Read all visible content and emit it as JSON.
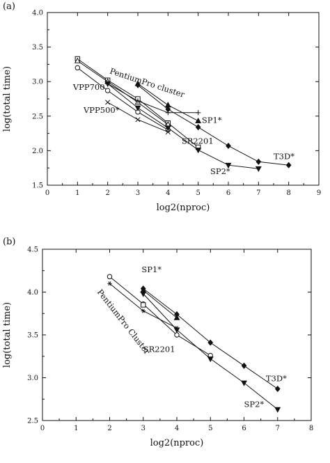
{
  "chart_data": [
    {
      "type": "line",
      "panel_label": "(a)",
      "xlabel": "log2(nproc)",
      "ylabel": "log(total time)",
      "xlim": [
        0,
        9
      ],
      "ylim": [
        1.5,
        4.0
      ],
      "xticks": [
        0,
        1,
        2,
        3,
        4,
        5,
        6,
        7,
        8,
        9
      ],
      "yticks": [
        1.5,
        2.0,
        2.5,
        3.0,
        3.5,
        4.0
      ],
      "ytick_decimals": 1,
      "grid": false,
      "legend": "none",
      "series": [
        {
          "marker": "circle-open",
          "x": [
            1,
            2,
            3,
            4
          ],
          "y": [
            3.2,
            2.87,
            2.56,
            2.3
          ]
        },
        {
          "marker": "square-open",
          "x": [
            1,
            2,
            3,
            4,
            5
          ],
          "y": [
            3.33,
            3.02,
            2.75,
            2.4,
            2.05
          ]
        },
        {
          "marker": "triangle-up-open",
          "x": [
            1,
            2,
            3,
            4
          ],
          "y": [
            3.3,
            3.0,
            2.7,
            2.38
          ]
        },
        {
          "marker": "triangle-down-filled",
          "x": [
            2,
            3,
            4,
            5,
            6,
            7
          ],
          "y": [
            2.97,
            2.62,
            2.33,
            2.01,
            1.79,
            1.74
          ]
        },
        {
          "marker": "cross",
          "x": [
            2,
            3,
            4
          ],
          "y": [
            2.7,
            2.45,
            2.27
          ]
        },
        {
          "marker": "plus",
          "x": [
            2,
            3,
            4,
            5
          ],
          "y": [
            2.97,
            2.72,
            2.55,
            2.55
          ]
        },
        {
          "marker": "triangle-up-filled",
          "x": [
            3,
            4,
            5
          ],
          "y": [
            2.97,
            2.66,
            2.43
          ]
        },
        {
          "marker": "diamond-filled",
          "x": [
            3,
            4,
            5,
            6,
            7,
            8
          ],
          "y": [
            2.95,
            2.6,
            2.34,
            2.07,
            1.84,
            1.79
          ]
        }
      ],
      "annotations": [
        {
          "text": "VPP700",
          "x": 0.85,
          "y": 2.88,
          "rotate": 0
        },
        {
          "text": "VPP500*",
          "x": 1.2,
          "y": 2.55,
          "rotate": 0
        },
        {
          "text": "PentiumPro cluster",
          "x": 2.05,
          "y": 3.12,
          "rotate": 18
        },
        {
          "text": "SP1*",
          "x": 5.12,
          "y": 2.4,
          "rotate": 0
        },
        {
          "text": "SR2201",
          "x": 4.45,
          "y": 2.1,
          "rotate": 0
        },
        {
          "text": "SP2*",
          "x": 5.4,
          "y": 1.66,
          "rotate": 0
        },
        {
          "text": "T3D*",
          "x": 7.5,
          "y": 1.88,
          "rotate": 0
        }
      ]
    },
    {
      "type": "line",
      "panel_label": "(b)",
      "xlabel": "log2(nproc)",
      "ylabel": "log(total time)",
      "xlim": [
        0,
        8
      ],
      "ylim": [
        2.5,
        4.5
      ],
      "xticks": [
        0,
        1,
        2,
        3,
        4,
        5,
        6,
        7,
        8
      ],
      "yticks": [
        2.5,
        3.0,
        3.5,
        4.0,
        4.5
      ],
      "ytick_decimals": 1,
      "grid": false,
      "legend": "none",
      "series": [
        {
          "marker": "circle-open",
          "x": [
            2,
            3,
            4,
            5
          ],
          "y": [
            4.18,
            3.86,
            3.5,
            3.26
          ]
        },
        {
          "marker": "square-open",
          "x": [
            3
          ],
          "y": [
            3.85
          ]
        },
        {
          "marker": "asterisk",
          "x": [
            2,
            3,
            4
          ],
          "y": [
            4.1,
            3.78,
            3.58
          ]
        },
        {
          "marker": "triangle-down-filled",
          "x": [
            3,
            4,
            5,
            6,
            7
          ],
          "y": [
            3.98,
            3.56,
            3.22,
            2.94,
            2.63
          ]
        },
        {
          "marker": "triangle-up-filled",
          "x": [
            3,
            4
          ],
          "y": [
            4.02,
            3.7
          ]
        },
        {
          "marker": "diamond-filled",
          "x": [
            3,
            4,
            5,
            6,
            7
          ],
          "y": [
            4.04,
            3.74,
            3.41,
            3.14,
            2.87
          ]
        }
      ],
      "annotations": [
        {
          "text": "SP1*",
          "x": 2.95,
          "y": 4.23,
          "rotate": 0
        },
        {
          "text": "PentiumPro Cluster",
          "x": 1.62,
          "y": 4.0,
          "rotate": 52
        },
        {
          "text": "SR2201",
          "x": 3.0,
          "y": 3.3,
          "rotate": 0
        },
        {
          "text": "T3D*",
          "x": 6.65,
          "y": 2.96,
          "rotate": 0
        },
        {
          "text": "SP2*",
          "x": 6.0,
          "y": 2.66,
          "rotate": 0
        }
      ]
    }
  ]
}
